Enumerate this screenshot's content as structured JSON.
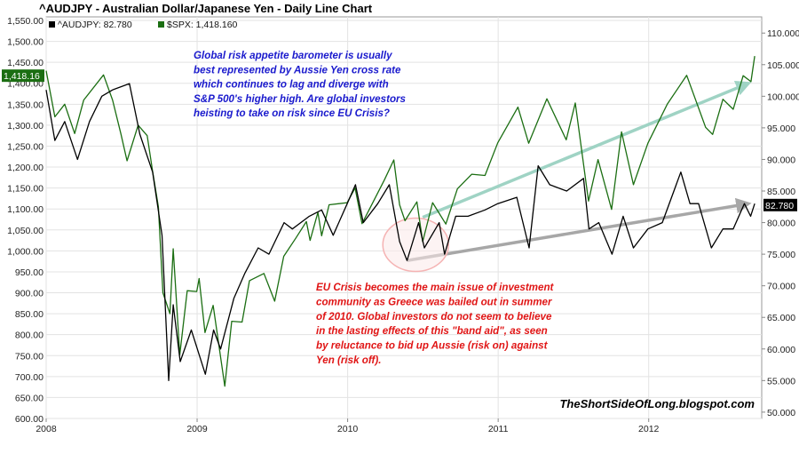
{
  "chart_data": {
    "type": "line",
    "title": "^AUDJPY - Australian Dollar/Japanese Yen - Daily Line Chart",
    "legend": [
      {
        "label": "^AUDJPY: 82.780",
        "color": "#000000"
      },
      {
        "label": "$SPX: 1,418.160",
        "color": "#1b6e12"
      }
    ],
    "x_ticks": [
      "2008",
      "2009",
      "2010",
      "2011",
      "2012"
    ],
    "x_range": [
      "2008-01",
      "2012-10"
    ],
    "left_axis": {
      "series": "$SPX",
      "range": [
        600,
        1550
      ],
      "ticks": [
        "600.00",
        "650.00",
        "700.00",
        "750.00",
        "800.00",
        "850.00",
        "900.00",
        "950.00",
        "1,000.00",
        "1,050.00",
        "1,100.00",
        "1,150.00",
        "1,200.00",
        "1,250.00",
        "1,300.00",
        "1,350.00",
        "1,400.00",
        "1,450.00",
        "1,500.00",
        "1,550.00"
      ]
    },
    "right_axis": {
      "series": "^AUDJPY",
      "range": [
        49,
        112
      ],
      "ticks": [
        "50.000",
        "55.000",
        "60.000",
        "65.000",
        "70.000",
        "75.000",
        "80.000",
        "85.000",
        "90.000",
        "95.000",
        "100.000",
        "105.000",
        "110.000"
      ]
    },
    "last_value_tags": [
      {
        "axis": "left",
        "value": 1418.16,
        "text": "1,418.16",
        "color": "#1b6e12"
      },
      {
        "axis": "right",
        "value": 82.78,
        "text": "82.780",
        "color": "#000000"
      }
    ],
    "series": [
      {
        "name": "$SPX",
        "axis": "left",
        "color": "#1b6e12",
        "points": [
          [
            "2008-01-01",
            1430
          ],
          [
            "2008-01-22",
            1320
          ],
          [
            "2008-02-15",
            1350
          ],
          [
            "2008-03-10",
            1280
          ],
          [
            "2008-04-01",
            1360
          ],
          [
            "2008-05-19",
            1420
          ],
          [
            "2008-06-10",
            1360
          ],
          [
            "2008-06-30",
            1280
          ],
          [
            "2008-07-15",
            1215
          ],
          [
            "2008-08-11",
            1300
          ],
          [
            "2008-09-02",
            1275
          ],
          [
            "2008-09-15",
            1190
          ],
          [
            "2008-09-29",
            1105
          ],
          [
            "2008-10-10",
            900
          ],
          [
            "2008-10-27",
            850
          ],
          [
            "2008-11-04",
            1005
          ],
          [
            "2008-11-20",
            752
          ],
          [
            "2008-12-08",
            905
          ],
          [
            "2008-12-31",
            903
          ],
          [
            "2009-01-06",
            934
          ],
          [
            "2009-01-20",
            805
          ],
          [
            "2009-02-09",
            870
          ],
          [
            "2009-03-09",
            677
          ],
          [
            "2009-03-26",
            832
          ],
          [
            "2009-04-20",
            830
          ],
          [
            "2009-05-08",
            929
          ],
          [
            "2009-06-12",
            946
          ],
          [
            "2009-07-08",
            880
          ],
          [
            "2009-07-30",
            987
          ],
          [
            "2009-08-28",
            1030
          ],
          [
            "2009-09-23",
            1070
          ],
          [
            "2009-10-02",
            1025
          ],
          [
            "2009-10-21",
            1092
          ],
          [
            "2009-10-30",
            1036
          ],
          [
            "2009-11-17",
            1110
          ],
          [
            "2009-12-31",
            1115
          ],
          [
            "2010-01-19",
            1150
          ],
          [
            "2010-02-05",
            1065
          ],
          [
            "2010-03-31",
            1169
          ],
          [
            "2010-04-23",
            1217
          ],
          [
            "2010-05-07",
            1110
          ],
          [
            "2010-05-20",
            1072
          ],
          [
            "2010-06-18",
            1117
          ],
          [
            "2010-07-02",
            1022
          ],
          [
            "2010-07-26",
            1115
          ],
          [
            "2010-08-27",
            1064
          ],
          [
            "2010-09-24",
            1148
          ],
          [
            "2010-10-29",
            1183
          ],
          [
            "2010-11-30",
            1180
          ],
          [
            "2010-12-31",
            1258
          ],
          [
            "2011-02-18",
            1343
          ],
          [
            "2011-03-16",
            1257
          ],
          [
            "2011-04-29",
            1363
          ],
          [
            "2011-06-15",
            1265
          ],
          [
            "2011-07-07",
            1353
          ],
          [
            "2011-08-08",
            1119
          ],
          [
            "2011-08-31",
            1218
          ],
          [
            "2011-10-03",
            1099
          ],
          [
            "2011-10-27",
            1284
          ],
          [
            "2011-11-25",
            1158
          ],
          [
            "2011-12-30",
            1257
          ],
          [
            "2012-02-15",
            1350
          ],
          [
            "2012-04-02",
            1419
          ],
          [
            "2012-05-18",
            1295
          ],
          [
            "2012-06-04",
            1278
          ],
          [
            "2012-06-29",
            1362
          ],
          [
            "2012-07-24",
            1338
          ],
          [
            "2012-08-17",
            1418
          ],
          [
            "2012-09-05",
            1404
          ],
          [
            "2012-09-14",
            1465
          ]
        ]
      },
      {
        "name": "^AUDJPY",
        "axis": "right",
        "color": "#000000",
        "points": [
          [
            "2008-01-01",
            101
          ],
          [
            "2008-01-22",
            93
          ],
          [
            "2008-02-15",
            96
          ],
          [
            "2008-03-17",
            90
          ],
          [
            "2008-04-15",
            96
          ],
          [
            "2008-05-15",
            100
          ],
          [
            "2008-06-10",
            101
          ],
          [
            "2008-07-21",
            102
          ],
          [
            "2008-08-15",
            94
          ],
          [
            "2008-09-15",
            88
          ],
          [
            "2008-10-08",
            78
          ],
          [
            "2008-10-24",
            55
          ],
          [
            "2008-11-04",
            67
          ],
          [
            "2008-11-21",
            58
          ],
          [
            "2008-12-18",
            63
          ],
          [
            "2009-01-21",
            56
          ],
          [
            "2009-02-10",
            63
          ],
          [
            "2009-02-27",
            60
          ],
          [
            "2009-03-31",
            68
          ],
          [
            "2009-04-27",
            72
          ],
          [
            "2009-05-29",
            76
          ],
          [
            "2009-06-24",
            75
          ],
          [
            "2009-07-31",
            80
          ],
          [
            "2009-08-20",
            79
          ],
          [
            "2009-09-30",
            81
          ],
          [
            "2009-10-30",
            82
          ],
          [
            "2009-11-27",
            78
          ],
          [
            "2009-12-31",
            83
          ],
          [
            "2010-01-20",
            86
          ],
          [
            "2010-02-08",
            80
          ],
          [
            "2010-03-15",
            83
          ],
          [
            "2010-04-12",
            86
          ],
          [
            "2010-05-07",
            77
          ],
          [
            "2010-05-25",
            74
          ],
          [
            "2010-06-22",
            80
          ],
          [
            "2010-07-06",
            76
          ],
          [
            "2010-08-11",
            80
          ],
          [
            "2010-08-24",
            75
          ],
          [
            "2010-09-20",
            81
          ],
          [
            "2010-10-20",
            81
          ],
          [
            "2010-11-30",
            82
          ],
          [
            "2010-12-31",
            83
          ],
          [
            "2011-02-15",
            84
          ],
          [
            "2011-03-17",
            76
          ],
          [
            "2011-04-08",
            89
          ],
          [
            "2011-05-06",
            86
          ],
          [
            "2011-06-16",
            85
          ],
          [
            "2011-07-27",
            87
          ],
          [
            "2011-08-09",
            79
          ],
          [
            "2011-09-02",
            80
          ],
          [
            "2011-10-04",
            75
          ],
          [
            "2011-10-31",
            81
          ],
          [
            "2011-11-25",
            76
          ],
          [
            "2011-12-30",
            79
          ],
          [
            "2012-02-03",
            80
          ],
          [
            "2012-03-19",
            88
          ],
          [
            "2012-04-10",
            83
          ],
          [
            "2012-05-01",
            83
          ],
          [
            "2012-06-01",
            76
          ],
          [
            "2012-06-29",
            79
          ],
          [
            "2012-07-24",
            79
          ],
          [
            "2012-08-20",
            83
          ],
          [
            "2012-09-04",
            81
          ],
          [
            "2012-09-14",
            83
          ]
        ]
      }
    ],
    "trend_arrows": [
      {
        "series": "$SPX",
        "color": "#9fd3c4",
        "from": [
          "2010-07-02",
          1080
        ],
        "to": [
          "2012-08-30",
          1400
        ]
      },
      {
        "series": "^AUDJPY",
        "color": "#a7a7a7",
        "from": [
          "2010-05-25",
          74
        ],
        "to": [
          "2012-08-30",
          83
        ]
      }
    ],
    "highlight_circle": {
      "center": [
        "2010-06-15",
        76.5
      ],
      "color": "#f5b3b3"
    },
    "annotations": [
      {
        "name": "annotation-risk-appetite",
        "color": "#1a1acd",
        "lines": [
          "Global risk appetite barometer is usually",
          "best represented by Aussie Yen cross rate",
          "which continues to lag and diverge with",
          "S&P 500's higher high. Are global investors",
          "heisting to take on risk since EU Crisis?"
        ]
      },
      {
        "name": "annotation-eu-crisis",
        "color": "#e01515",
        "lines": [
          "EU Crisis becomes the main issue of investment",
          "community as Greece was bailed out in summer",
          "of 2010. Global investors do not seem to believe",
          "in the lasting effects of this \"band aid\", as seen",
          "by reluctance to bid up Aussie (risk on) against",
          "Yen (risk off)."
        ]
      }
    ],
    "watermark": "TheShortSideOfLong.blogspot.com",
    "grid": true
  }
}
